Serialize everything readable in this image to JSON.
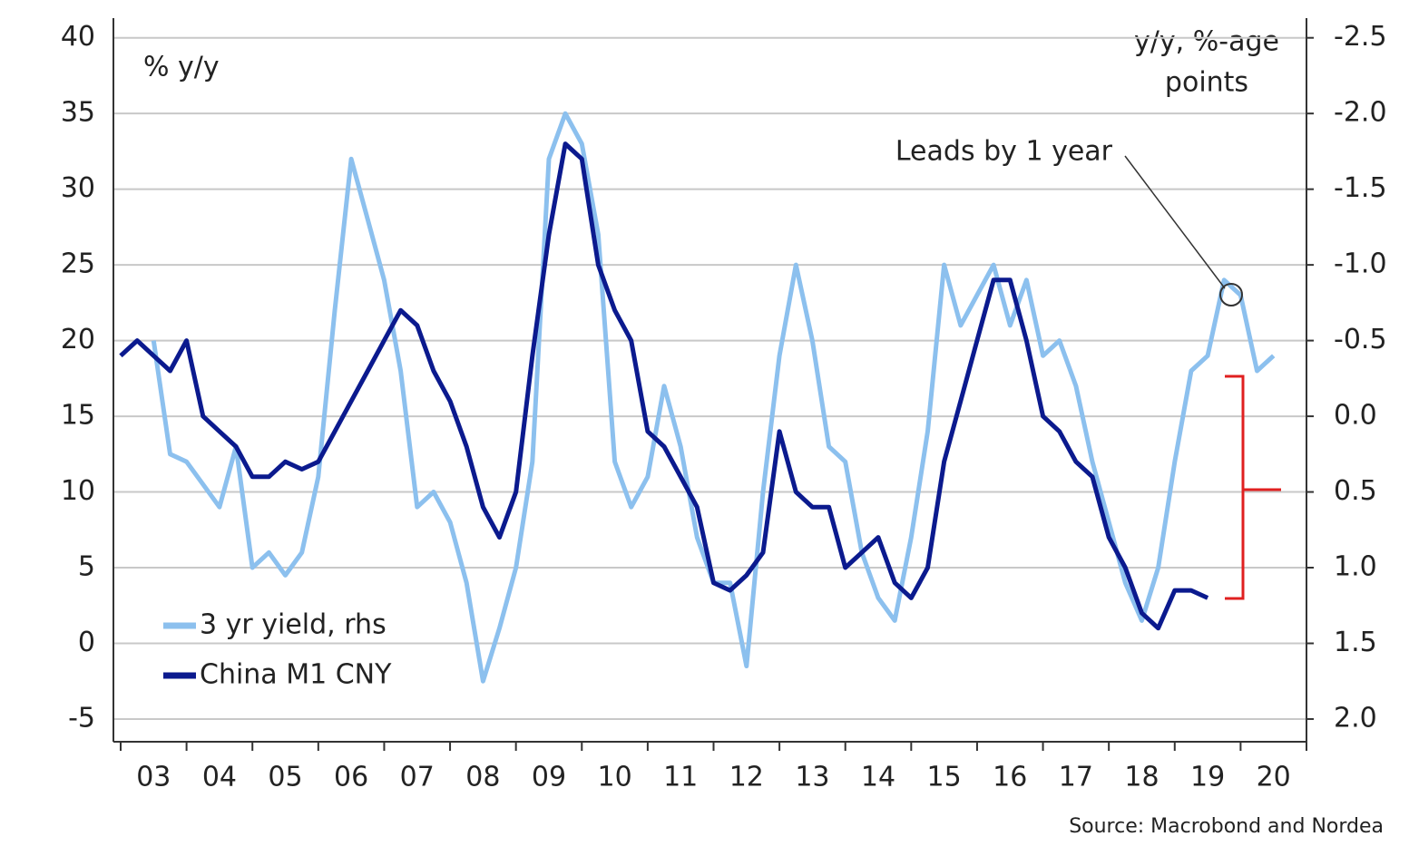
{
  "chart_data": {
    "type": "line",
    "annotations": {
      "left_unit": "% y/y",
      "right_unit_1": "y/y, %-age",
      "right_unit_2": "points",
      "lead_note": "Leads by 1 year",
      "source": "Source: Macrobond and Nordea"
    },
    "x": [
      2003,
      2003.25,
      2003.5,
      2003.75,
      2004,
      2004.25,
      2004.5,
      2004.75,
      2005,
      2005.25,
      2005.5,
      2005.75,
      2006,
      2006.25,
      2006.5,
      2006.75,
      2007,
      2007.25,
      2007.5,
      2007.75,
      2008,
      2008.25,
      2008.5,
      2008.75,
      2009,
      2009.25,
      2009.5,
      2009.75,
      2010,
      2010.25,
      2010.5,
      2010.75,
      2011,
      2011.25,
      2011.5,
      2011.75,
      2012,
      2012.25,
      2012.5,
      2012.75,
      2013,
      2013.25,
      2013.5,
      2013.75,
      2014,
      2014.25,
      2014.5,
      2014.75,
      2015,
      2015.25,
      2015.5,
      2015.75,
      2016,
      2016.25,
      2016.5,
      2016.75,
      2017,
      2017.25,
      2017.5,
      2017.75,
      2018,
      2018.25,
      2018.5,
      2018.75,
      2019,
      2019.25,
      2019.5,
      2019.75,
      2020,
      2020.25,
      2020.5,
      2020.75
    ],
    "series": [
      {
        "name": "3 yr yield, rhs",
        "color": "#8cc0ee",
        "axis": "y2",
        "values": [
          null,
          null,
          -0.5,
          0.25,
          0.3,
          0.45,
          0.6,
          0.2,
          1.0,
          0.9,
          1.05,
          0.9,
          0.4,
          -0.7,
          -1.7,
          -1.3,
          -0.9,
          -0.3,
          0.6,
          0.5,
          0.7,
          1.1,
          1.75,
          1.4,
          1.0,
          0.3,
          -1.7,
          -2.0,
          -1.8,
          -1.2,
          0.3,
          0.6,
          0.4,
          -0.2,
          0.2,
          0.8,
          1.1,
          1.1,
          1.65,
          0.5,
          -0.4,
          -1.0,
          -0.5,
          0.2,
          0.3,
          0.9,
          1.2,
          1.35,
          0.8,
          0.1,
          -1.0,
          -0.6,
          -0.8,
          -1.0,
          -0.6,
          -0.9,
          -0.4,
          -0.5,
          -0.2,
          0.3,
          0.7,
          1.1,
          1.35,
          1.0,
          0.3,
          -0.3,
          -0.4,
          -0.9,
          -0.8,
          -0.3,
          -0.4,
          null
        ]
      },
      {
        "name": "China M1 CNY",
        "color": "#0b1a8e",
        "values": [
          19,
          20,
          19,
          18,
          20,
          15,
          14,
          13,
          11,
          11,
          12,
          11.5,
          12,
          14,
          16,
          18,
          20,
          22,
          21,
          18,
          16,
          13,
          9,
          7,
          10,
          19,
          27,
          33,
          32,
          25,
          22,
          20,
          14,
          13,
          11,
          9,
          4,
          3.5,
          4.5,
          6,
          14,
          10,
          9,
          9,
          5,
          6,
          7,
          4,
          3,
          5,
          12,
          16,
          20,
          24,
          24,
          20,
          15,
          14,
          12,
          11,
          7,
          5,
          2,
          1,
          3.5,
          3.5,
          3,
          null,
          null,
          null,
          null,
          null
        ]
      }
    ],
    "xlim": [
      2003,
      2021
    ],
    "xticks": [
      {
        "value": 2003.5,
        "label": "03"
      },
      {
        "value": 2004.5,
        "label": "04"
      },
      {
        "value": 2005.5,
        "label": "05"
      },
      {
        "value": 2006.5,
        "label": "06"
      },
      {
        "value": 2007.5,
        "label": "07"
      },
      {
        "value": 2008.5,
        "label": "08"
      },
      {
        "value": 2009.5,
        "label": "09"
      },
      {
        "value": 2010.5,
        "label": "10"
      },
      {
        "value": 2011.5,
        "label": "11"
      },
      {
        "value": 2012.5,
        "label": "12"
      },
      {
        "value": 2013.5,
        "label": "13"
      },
      {
        "value": 2014.5,
        "label": "14"
      },
      {
        "value": 2015.5,
        "label": "15"
      },
      {
        "value": 2016.5,
        "label": "16"
      },
      {
        "value": 2017.5,
        "label": "17"
      },
      {
        "value": 2018.5,
        "label": "18"
      },
      {
        "value": 2019.5,
        "label": "19"
      },
      {
        "value": 2020.5,
        "label": "20"
      }
    ],
    "xminorticks": [
      2003,
      2004,
      2005,
      2006,
      2007,
      2008,
      2009,
      2010,
      2011,
      2012,
      2013,
      2014,
      2015,
      2016,
      2017,
      2018,
      2019,
      2020,
      2021
    ],
    "ylim": [
      -6.5,
      41.3
    ],
    "yticks": [
      -5,
      0,
      5,
      10,
      15,
      20,
      25,
      30,
      35,
      40
    ],
    "y2lim": [
      2.15,
      -2.63
    ],
    "y2ticks": [
      {
        "value": -2.5,
        "label": "-2.5"
      },
      {
        "value": -2,
        "label": "-2.0"
      },
      {
        "value": -1.5,
        "label": "-1.5"
      },
      {
        "value": -1,
        "label": "-1.0"
      },
      {
        "value": -0.5,
        "label": "-0.5"
      },
      {
        "value": 0,
        "label": "0.0"
      },
      {
        "value": 0.5,
        "label": "0.5"
      },
      {
        "value": 1,
        "label": "1.0"
      },
      {
        "value": 1.5,
        "label": "1.5"
      },
      {
        "value": 2,
        "label": "2.0"
      }
    ],
    "grid": true,
    "legend": "lower left"
  }
}
